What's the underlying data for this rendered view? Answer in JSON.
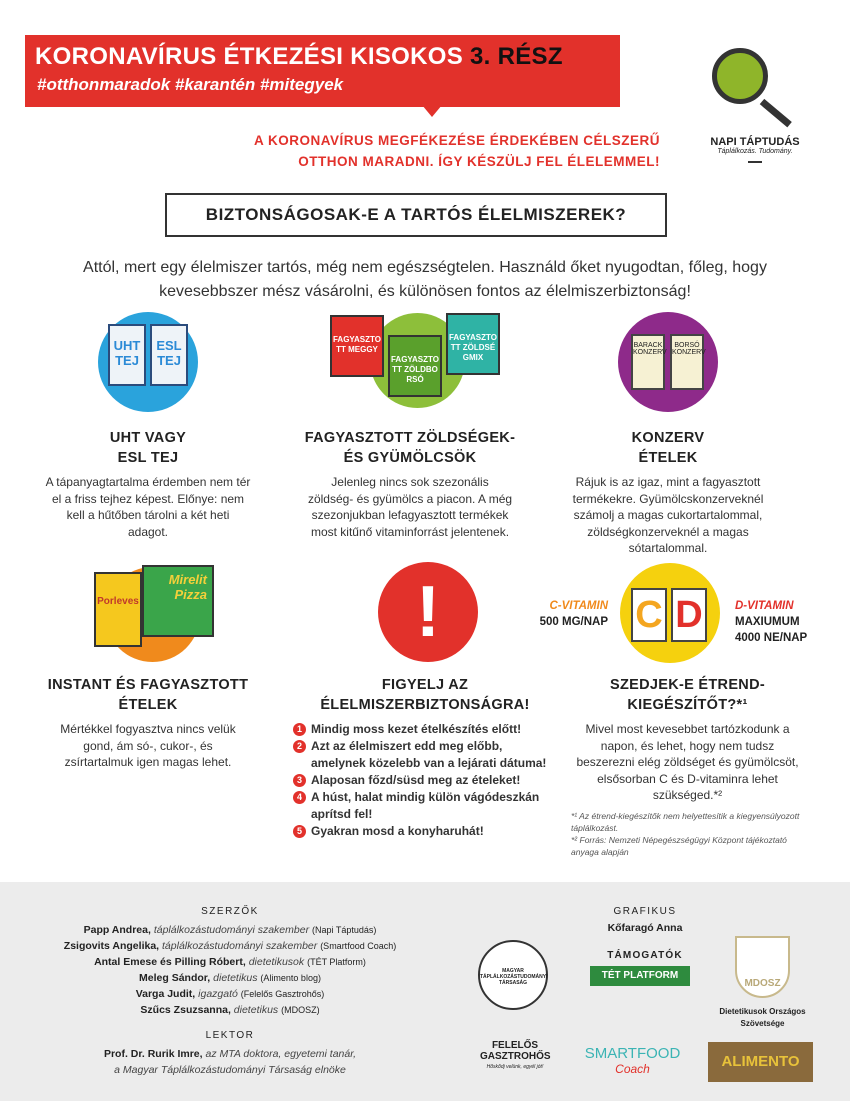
{
  "header": {
    "title": "KORONAVÍRUS ÉTKEZÉSI KISOKOS",
    "title_part": "3. RÉSZ",
    "hashtags": "#otthonmaradok  #karantén  #mitegyek",
    "subtitle_line1": "A KORONAVÍRUS MEGFÉKEZÉSE ÉRDEKÉBEN CÉLSZERŰ",
    "subtitle_line2": "OTTHON MARADNI. ÍGY KÉSZÜLJ FEL ÉLELEMMEL!"
  },
  "logo": {
    "name": "NAPI TÁPTUDÁS",
    "tagline": "Táplálkozás. Tudomány."
  },
  "question": "BIZTONSÁGOSAK-E A TARTÓS ÉLELMISZEREK?",
  "intro": "Attól, mert egy élelmiszer tartós, még nem egészségtelen. Használd őket nyugodtan, főleg, hogy kevesebbszer mész vásárolni, és különösen fontos az élelmiszerbiztonság!",
  "illustrations": {
    "milk": [
      "UHT TEJ",
      "ESL TEJ"
    ],
    "frozen": [
      "FAGYASZTOTT MEGGY",
      "FAGYASZTOTT ZÖLDBORSÓ",
      "FAGYASZTOTT ZÖLDSÉGMIX"
    ],
    "cans": [
      "BARACK KONZERV",
      "BORSÓ KONZERV"
    ],
    "instant": [
      "Porleves",
      "Mirelit Pizza"
    ],
    "warning": "!",
    "vitamins": [
      "C",
      "D"
    ]
  },
  "sections": [
    {
      "title_1": "UHT VAGY",
      "title_2": "ESL TEJ",
      "body": "A tápanyagtartalma érdemben nem tér el a friss tejhez képest. Előnye: nem kell a hűtőben tárolni a két heti adagot."
    },
    {
      "title_1": "FAGYASZTOTT ZÖLDSÉGEK-",
      "title_2": "ÉS GYÜMÖLCSÖK",
      "body": "Jelenleg nincs sok szezonális zöldség- és gyümölcs a piacon. A még szezonjukban lefagyasztott termékek most kitűnő vitaminforrást jelentenek."
    },
    {
      "title_1": "KONZERV",
      "title_2": "ÉTELEK",
      "body": "Rájuk is az igaz, mint a fagyasztott termékekre. Gyümölcskonzerveknél számolj a magas cukortartalommal, zöldségkonzerveknél a magas sótartalommal."
    },
    {
      "title_1": "INSTANT ÉS FAGYASZTOTT",
      "title_2": "ÉTELEK",
      "body": "Mértékkel fogyasztva nincs velük gond, ám só-, cukor-, és zsírtartalmuk igen magas lehet."
    },
    {
      "title_1": "FIGYELJ AZ",
      "title_2": "ÉLELMISZERBIZTONSÁGRA!",
      "steps": [
        "Mindig moss kezet ételkészítés előtt!",
        "Azt az élelmiszert edd meg előbb, amelynek közelebb van a lejárati dátuma!",
        "Alaposan főzd/süsd meg az ételeket!",
        "A húst, halat mindig külön vágódeszkán aprítsd fel!",
        "Gyakran mosd a konyharuhát!"
      ]
    },
    {
      "title_1": "SZEDJEK-E ÉTREND-",
      "title_2": "KIEGÉSZÍTŐT?*¹",
      "body": "Mivel most kevesebbet tartózkodunk a napon, és lehet, hogy nem tudsz beszerezni elég zöldséget és gyümölcsöt, elsősorban C és D-vitaminra lehet szükséged.*²",
      "note1": "*¹ Az étrend-kiegészítők nem helyettesítik a kiegyensúlyozott táplálkozást.",
      "note2": "*² Forrás: Nemzeti Népegészségügyi Központ tájékoztató anyaga alapján"
    }
  ],
  "vitamins": {
    "c_label": "C-VITAMIN",
    "c_value": "500 MG/NAP",
    "d_label": "D-VITAMIN",
    "d_value_1": "MAXIUMUM",
    "d_value_2": "4000 NE/NAP"
  },
  "footer": {
    "authors_heading": "SZERZŐK",
    "authors": [
      {
        "name": "Papp Andrea,",
        "role": "táplálkozástudományi szakember",
        "org": "(Napi Táptudás)"
      },
      {
        "name": "Zsigovits Angelika,",
        "role": "táplálkozástudományi szakember",
        "org": "(Smartfood Coach)"
      },
      {
        "name": "Antal Emese és Pilling Róbert,",
        "role": "dietetikusok",
        "org": "(TÉT Platform)"
      },
      {
        "name": "Meleg Sándor,",
        "role": "dietetikus",
        "org": "(Alimento blog)"
      },
      {
        "name": "Varga Judit,",
        "role": "igazgató",
        "org": "(Felelős Gasztrohős)"
      },
      {
        "name": "Szűcs Zsuzsanna,",
        "role": "dietetikus",
        "org": "(MDOSZ)"
      }
    ],
    "lektor_heading": "LEKTOR",
    "lektor_name": "Prof. Dr. Rurik Imre,",
    "lektor_role_1": "az MTA doktora, egyetemi tanár,",
    "lektor_role_2": "a Magyar Táplálkozástudományi Társaság elnöke",
    "graphic_heading": "GRAFIKUS",
    "graphic_name": "Kőfaragó Anna",
    "supporters_heading": "TÁMOGATÓK",
    "logos": {
      "mtt": "MAGYAR TÁPLÁLKOZÁSTUDOMÁNYI TÁRSASÁG",
      "tet": "TÉT PLATFORM",
      "mdosz": "MDOSZ",
      "mdosz_caption": "Dietetikusok Országos Szövetsége",
      "gasztrohos": "FELELŐS GASZTROHŐS",
      "gasztrohos_tag": "Hőskődj velünk, egyél jót!",
      "smartfood": "SMARTFOOD",
      "smartfood_sub": "Coach",
      "alimento": "ALIMENTO"
    }
  }
}
